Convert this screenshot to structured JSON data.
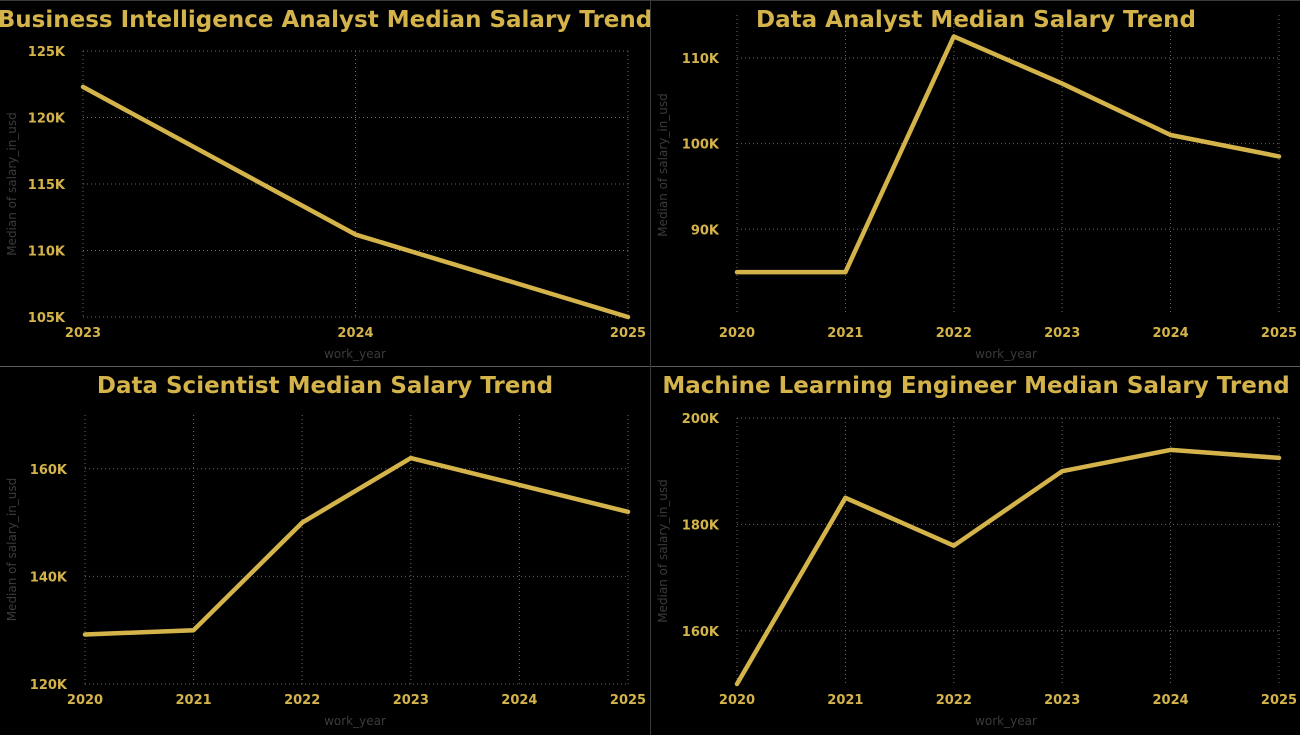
{
  "chart_data": [
    {
      "type": "line",
      "title": "Business Intelligence Analyst Median Salary Trend",
      "xlabel": "work_year",
      "ylabel": "Median of salary_in_usd",
      "x": [
        2023,
        2024,
        2025
      ],
      "xticks": [
        "2023",
        "2024",
        "2025"
      ],
      "ylim": [
        105000,
        125000
      ],
      "yticks": [
        105000,
        110000,
        115000,
        120000,
        125000
      ],
      "yticklabels": [
        "105K",
        "110K",
        "115K",
        "120K",
        "125K"
      ],
      "grid": true,
      "series": [
        {
          "values": [
            122300,
            111200,
            105000
          ]
        }
      ]
    },
    {
      "type": "line",
      "title": "Data Analyst Median Salary Trend",
      "xlabel": "work_year",
      "ylabel": "Median of salary_in_usd",
      "x": [
        2020,
        2021,
        2022,
        2023,
        2024,
        2025
      ],
      "xticks": [
        "2020",
        "2021",
        "2022",
        "2023",
        "2024",
        "2025"
      ],
      "ylim": [
        80000,
        115000
      ],
      "yticks": [
        90000,
        100000,
        110000
      ],
      "yticklabels": [
        "90K",
        "100K",
        "110K"
      ],
      "grid": true,
      "series": [
        {
          "values": [
            85000,
            85000,
            112500,
            107000,
            101000,
            98500
          ]
        }
      ]
    },
    {
      "type": "line",
      "title": "Data Scientist Median Salary Trend",
      "xlabel": "work_year",
      "ylabel": "Median of salary_in_usd",
      "x": [
        2020,
        2021,
        2022,
        2023,
        2024,
        2025
      ],
      "xticks": [
        "2020",
        "2021",
        "2022",
        "2023",
        "2024",
        "2025"
      ],
      "ylim": [
        120000,
        170000
      ],
      "yticks": [
        120000,
        140000,
        160000
      ],
      "yticklabels": [
        "120K",
        "140K",
        "160K"
      ],
      "grid": true,
      "series": [
        {
          "values": [
            129200,
            130000,
            150000,
            162000,
            157000,
            152000
          ]
        }
      ]
    },
    {
      "type": "line",
      "title": "Machine Learning Engineer Median Salary Trend",
      "xlabel": "work_year",
      "ylabel": "Median of salary_in_usd",
      "x": [
        2020,
        2021,
        2022,
        2023,
        2024,
        2025
      ],
      "xticks": [
        "2020",
        "2021",
        "2022",
        "2023",
        "2024",
        "2025"
      ],
      "ylim": [
        150000,
        200000
      ],
      "yticks": [
        160000,
        180000,
        200000
      ],
      "yticklabels": [
        "160K",
        "180K",
        "200K"
      ],
      "grid": true,
      "series": [
        {
          "values": [
            150000,
            185000,
            176000,
            190000,
            194000,
            192500
          ]
        }
      ]
    }
  ],
  "colors": {
    "line": "#d4b44a",
    "background": "#000000",
    "axis_label": "#3b3b3b"
  }
}
